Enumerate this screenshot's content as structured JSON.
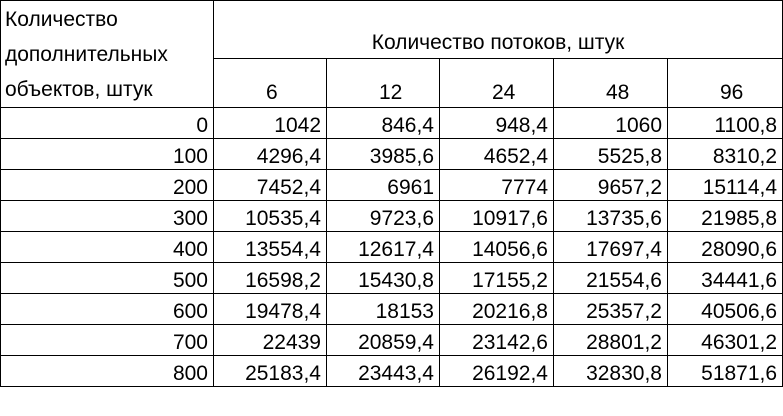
{
  "table": {
    "corner_lines": [
      "Количество",
      "дополнительных",
      "объектов, штук"
    ],
    "group_header": "Количество потоков, штук",
    "columns": [
      "6",
      "12",
      "24",
      "48",
      "96"
    ],
    "rows": [
      {
        "label": "0",
        "values": [
          "1042",
          "846,4",
          "948,4",
          "1060",
          "1100,8"
        ]
      },
      {
        "label": "100",
        "values": [
          "4296,4",
          "3985,6",
          "4652,4",
          "5525,8",
          "8310,2"
        ]
      },
      {
        "label": "200",
        "values": [
          "7452,4",
          "6961",
          "7774",
          "9657,2",
          "15114,4"
        ]
      },
      {
        "label": "300",
        "values": [
          "10535,4",
          "9723,6",
          "10917,6",
          "13735,6",
          "21985,8"
        ]
      },
      {
        "label": "400",
        "values": [
          "13554,4",
          "12617,4",
          "14056,6",
          "17697,4",
          "28090,6"
        ]
      },
      {
        "label": "500",
        "values": [
          "16598,2",
          "15430,8",
          "17155,2",
          "21554,6",
          "34441,6"
        ]
      },
      {
        "label": "600",
        "values": [
          "19478,4",
          "18153",
          "20216,8",
          "25357,2",
          "40506,6"
        ]
      },
      {
        "label": "700",
        "values": [
          "22439",
          "20859,4",
          "23142,6",
          "28801,2",
          "46301,2"
        ]
      },
      {
        "label": "800",
        "values": [
          "25183,4",
          "23443,4",
          "26192,4",
          "32830,8",
          "51871,6"
        ]
      }
    ]
  }
}
